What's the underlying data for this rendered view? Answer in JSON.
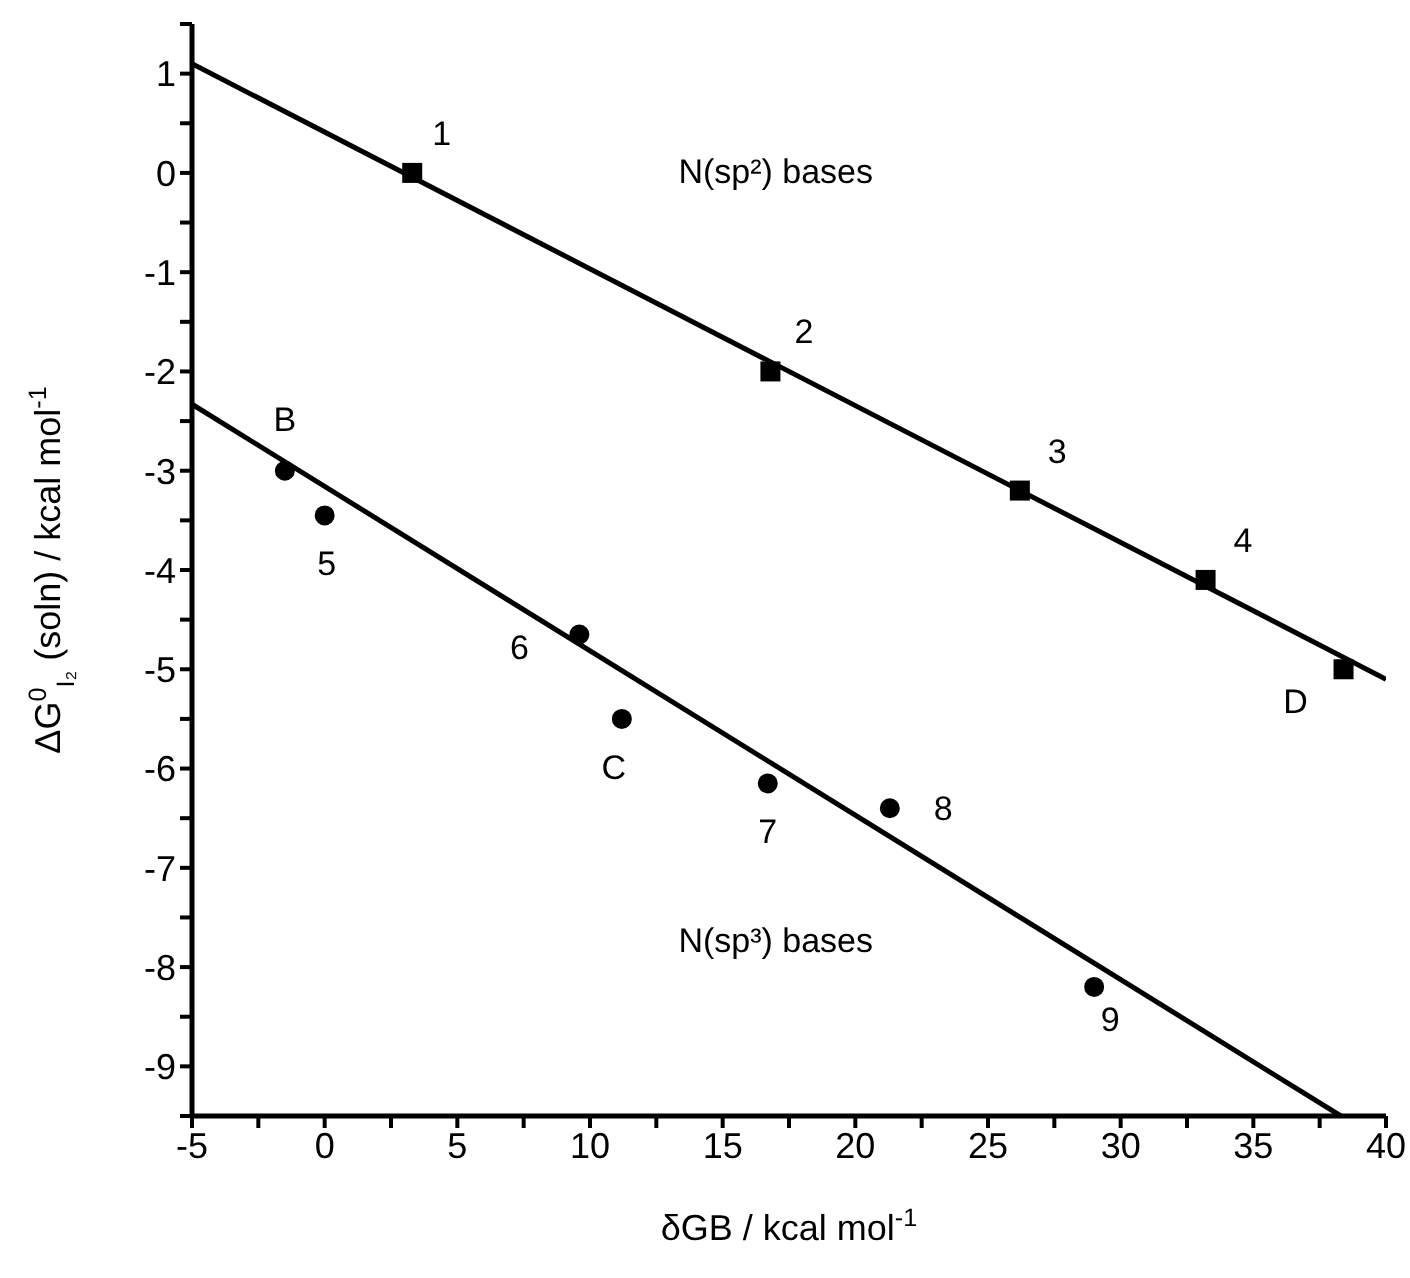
{
  "chart_data": {
    "type": "scatter",
    "xlabel": "δGB / kcal mol$^{-1}$",
    "ylabel": "ΔG$^{0}$$_{I₂}$ (soln) / kcal mol$^{-1}$",
    "xlim": [
      -5,
      40
    ],
    "ylim": [
      -9.5,
      1.5
    ],
    "xticks": [
      -5,
      {
        "value": -2.5,
        "label": null
      },
      0,
      {
        "value": 2.5,
        "label": null
      },
      5,
      {
        "value": 7.5,
        "label": null
      },
      10,
      {
        "value": 12.5,
        "label": null
      },
      15,
      {
        "value": 17.5,
        "label": null
      },
      20,
      {
        "value": 22.5,
        "label": null
      },
      25,
      {
        "value": 27.5,
        "label": null
      },
      30,
      {
        "value": 32.5,
        "label": null
      },
      35,
      {
        "value": 37.5,
        "label": null
      },
      40
    ],
    "yticks": [
      {
        "value": -9.5,
        "label": null
      },
      -9,
      {
        "value": -8.5,
        "label": null
      },
      -8,
      {
        "value": -7.5,
        "label": null
      },
      -7,
      {
        "value": -6.5,
        "label": null
      },
      -6,
      {
        "value": -5.5,
        "label": null
      },
      -5,
      {
        "value": -4.5,
        "label": null
      },
      -4,
      {
        "value": -3.5,
        "label": null
      },
      -3,
      {
        "value": -2.5,
        "label": null
      },
      -2,
      {
        "value": -1.5,
        "label": null
      },
      -1,
      {
        "value": -0.5,
        "label": null
      },
      0,
      {
        "value": 0.5,
        "label": null
      },
      1,
      {
        "value": 1.5,
        "label": null
      }
    ],
    "grid": false,
    "legend": false,
    "series": [
      {
        "marker": "square",
        "color": "#000000",
        "x": [
          3.3,
          16.8,
          26.2,
          33.2
        ],
        "values": [
          0.0,
          -2.0,
          -3.2,
          -4.1
        ]
      },
      {
        "marker": "square",
        "color": "#000000",
        "x": [
          38.4
        ],
        "values": [
          -5.0
        ]
      },
      {
        "marker": "circle",
        "color": "#000000",
        "x": [
          -1.5,
          11.2
        ],
        "values": [
          -3.0,
          -5.5
        ]
      },
      {
        "marker": "circle",
        "color": "#000000",
        "x": [
          0.0,
          9.6,
          16.7,
          21.3,
          29.0
        ],
        "values": [
          -3.45,
          -4.65,
          -6.15,
          -6.4,
          -8.2
        ]
      },
      {
        "type": "line",
        "marker": "none",
        "color": "#000000",
        "x": [
          -5,
          40
        ],
        "values": [
          1.1,
          -5.1
        ]
      },
      {
        "type": "line",
        "marker": "none",
        "color": "#000000",
        "x": [
          -5,
          38.3
        ],
        "values": [
          -2.33,
          -9.5
        ]
      }
    ],
    "annotations": [
      {
        "text": "1",
        "x": 3.3,
        "y": 0.0
      },
      {
        "text": "2",
        "x": 16.8,
        "y": -2.0
      },
      {
        "text": "3",
        "x": 26.2,
        "y": -3.2
      },
      {
        "text": "4",
        "x": 33.2,
        "y": -4.1
      },
      {
        "text": "D",
        "x": 38.4,
        "y": -5.0
      },
      {
        "text": "B",
        "x": -1.5,
        "y": -3.0
      },
      {
        "text": "C",
        "x": 11.2,
        "y": -5.5
      },
      {
        "text": "5",
        "x": 0.0,
        "y": -3.45
      },
      {
        "text": "6",
        "x": 9.6,
        "y": -4.65
      },
      {
        "text": "7",
        "x": 16.7,
        "y": -6.15
      },
      {
        "text": "8",
        "x": 21.3,
        "y": -6.4
      },
      {
        "text": "9",
        "x": 29.0,
        "y": -8.2
      },
      "N(sp²)  bases",
      "N(sp³)  bases"
    ]
  }
}
